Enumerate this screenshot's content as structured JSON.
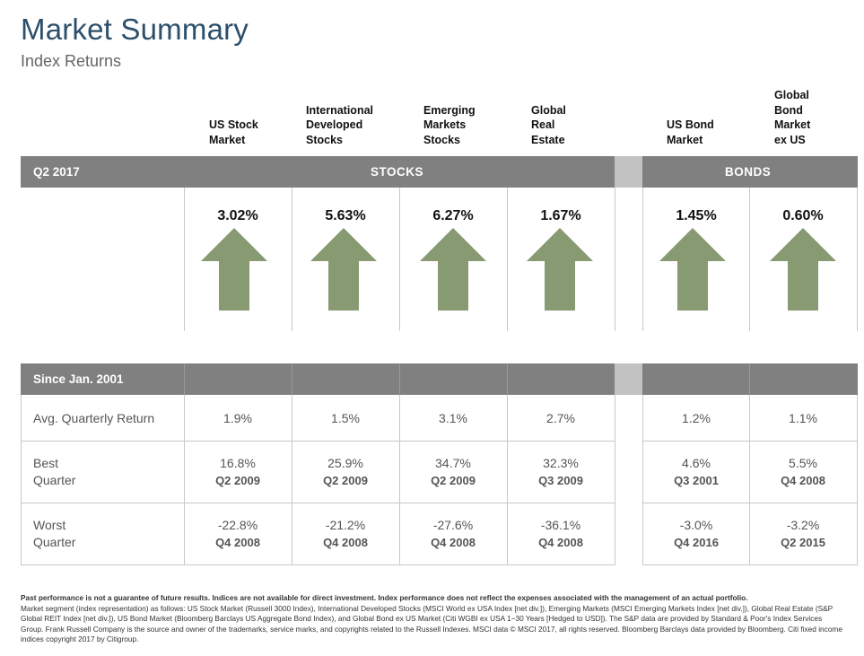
{
  "header": {
    "title": "Market Summary",
    "subtitle": "Index Returns"
  },
  "columns": [
    {
      "id": "us-stock",
      "label": "US Stock\nMarket",
      "group": "stocks"
    },
    {
      "id": "intl-dev",
      "label": "International\nDeveloped\nStocks",
      "group": "stocks"
    },
    {
      "id": "emerging",
      "label": "Emerging\nMarkets\nStocks",
      "group": "stocks"
    },
    {
      "id": "global-re",
      "label": "Global\nReal\nEstate",
      "group": "stocks"
    },
    {
      "id": "us-bond",
      "label": "US Bond\nMarket",
      "group": "bonds"
    },
    {
      "id": "global-bond",
      "label": "Global\nBond\nMarket\nex US",
      "group": "bonds"
    }
  ],
  "quarter_band": {
    "period": "Q2 2017",
    "stocks_label": "STOCKS",
    "bonds_label": "BONDS"
  },
  "quarter_returns": [
    "3.02%",
    "5.63%",
    "6.27%",
    "1.67%",
    "1.45%",
    "0.60%"
  ],
  "arrow_direction": "up",
  "arrow_color": "#879a72",
  "band_color": "#808080",
  "since_band": {
    "label": "Since Jan. 2001"
  },
  "stats": {
    "avg": {
      "label": "Avg. Quarterly Return",
      "values": [
        "1.9%",
        "1.5%",
        "3.1%",
        "2.7%",
        "1.2%",
        "1.1%"
      ]
    },
    "best": {
      "label": "Best\nQuarter",
      "values": [
        "16.8%",
        "25.9%",
        "34.7%",
        "32.3%",
        "4.6%",
        "5.5%"
      ],
      "quarters": [
        "Q2 2009",
        "Q2 2009",
        "Q2 2009",
        "Q3 2009",
        "Q3 2001",
        "Q4 2008"
      ]
    },
    "worst": {
      "label": "Worst\nQuarter",
      "values": [
        "-22.8%",
        "-21.2%",
        "-27.6%",
        "-36.1%",
        "-3.0%",
        "-3.2%"
      ],
      "quarters": [
        "Q4 2008",
        "Q4 2008",
        "Q4 2008",
        "Q4 2008",
        "Q4 2016",
        "Q2 2015"
      ]
    }
  },
  "footnote": {
    "lead": "Past performance is not a guarantee of future results. Indices are not available for direct investment. Index performance does not reflect the expenses associated with the management of an actual portfolio.",
    "body": "Market segment (index representation) as follows: US Stock Market (Russell 3000 Index), International Developed Stocks (MSCI World ex USA Index [net div.]), Emerging Markets (MSCI Emerging Markets Index [net div.]), Global Real Estate (S&P Global REIT Index [net div.]), US Bond Market (Bloomberg Barclays US Aggregate Bond Index), and Global Bond ex US Market (Citi WGBI ex USA 1−30 Years [Hedged to USD]). The S&P data are provided by Standard & Poor's Index Services Group. Frank Russell Company is the source and owner of the trademarks, service marks, and copyrights related to the Russell Indexes. MSCI data © MSCI 2017, all rights reserved. Bloomberg Barclays data provided by Bloomberg. Citi fixed income indices copyright 2017 by Citigroup."
  }
}
